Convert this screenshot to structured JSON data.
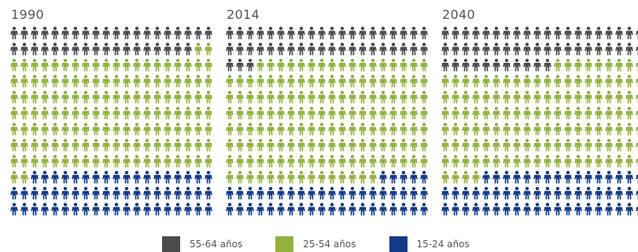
{
  "colors": {
    "55-64": "#4c4c4e",
    "25-54": "#93b23b",
    "15-24": "#103a8c"
  },
  "legend": [
    {
      "key": "55-64",
      "label": "55-64 años"
    },
    {
      "key": "25-54",
      "label": "25-54 años"
    },
    {
      "key": "15-24",
      "label": "15-24 años"
    }
  ],
  "chart_data": {
    "type": "pictograph",
    "unit": "person-icon",
    "columns_per_panel": 20,
    "rows_per_panel": 12,
    "categories": [
      "55-64 años",
      "25-54 años",
      "15-24 años"
    ],
    "panels": [
      {
        "title": "1990",
        "counts": {
          "55-64": 38,
          "25-54": 144,
          "15-24": 58
        }
      },
      {
        "title": "2014",
        "counts": {
          "55-64": 43,
          "25-54": 152,
          "15-24": 45
        }
      },
      {
        "title": "2040",
        "counts": {
          "55-64": 51,
          "25-54": 133,
          "15-24": 56
        }
      }
    ]
  }
}
